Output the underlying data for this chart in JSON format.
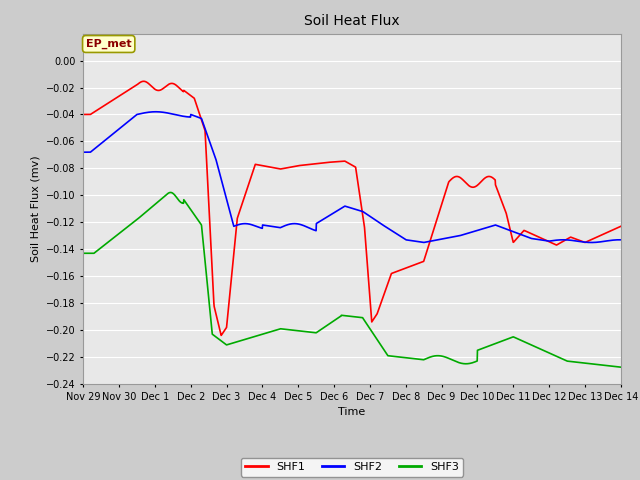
{
  "title": "Soil Heat Flux",
  "xlabel": "Time",
  "ylabel": "Soil Heat Flux (mv)",
  "ylim": [
    -0.24,
    0.02
  ],
  "yticks": [
    0.0,
    -0.02,
    -0.04,
    -0.06,
    -0.08,
    -0.1,
    -0.12,
    -0.14,
    -0.16,
    -0.18,
    -0.2,
    -0.22,
    -0.24
  ],
  "xtick_labels": [
    "Nov 29",
    "Nov 30",
    "Dec 1",
    "Dec 2",
    "Dec 3",
    "Dec 4",
    "Dec 5",
    "Dec 6",
    "Dec 7",
    "Dec 8",
    "Dec 9",
    "Dec 10",
    "Dec 11",
    "Dec 12",
    "Dec 13",
    "Dec 14"
  ],
  "colors": {
    "SHF1": "#ff0000",
    "SHF2": "#0000ff",
    "SHF3": "#00aa00",
    "fig_bg": "#cccccc",
    "plot_bg": "#e8e8e8",
    "grid": "#ffffff"
  },
  "annotation": "EP_met",
  "legend_labels": [
    "SHF1",
    "SHF2",
    "SHF3"
  ]
}
